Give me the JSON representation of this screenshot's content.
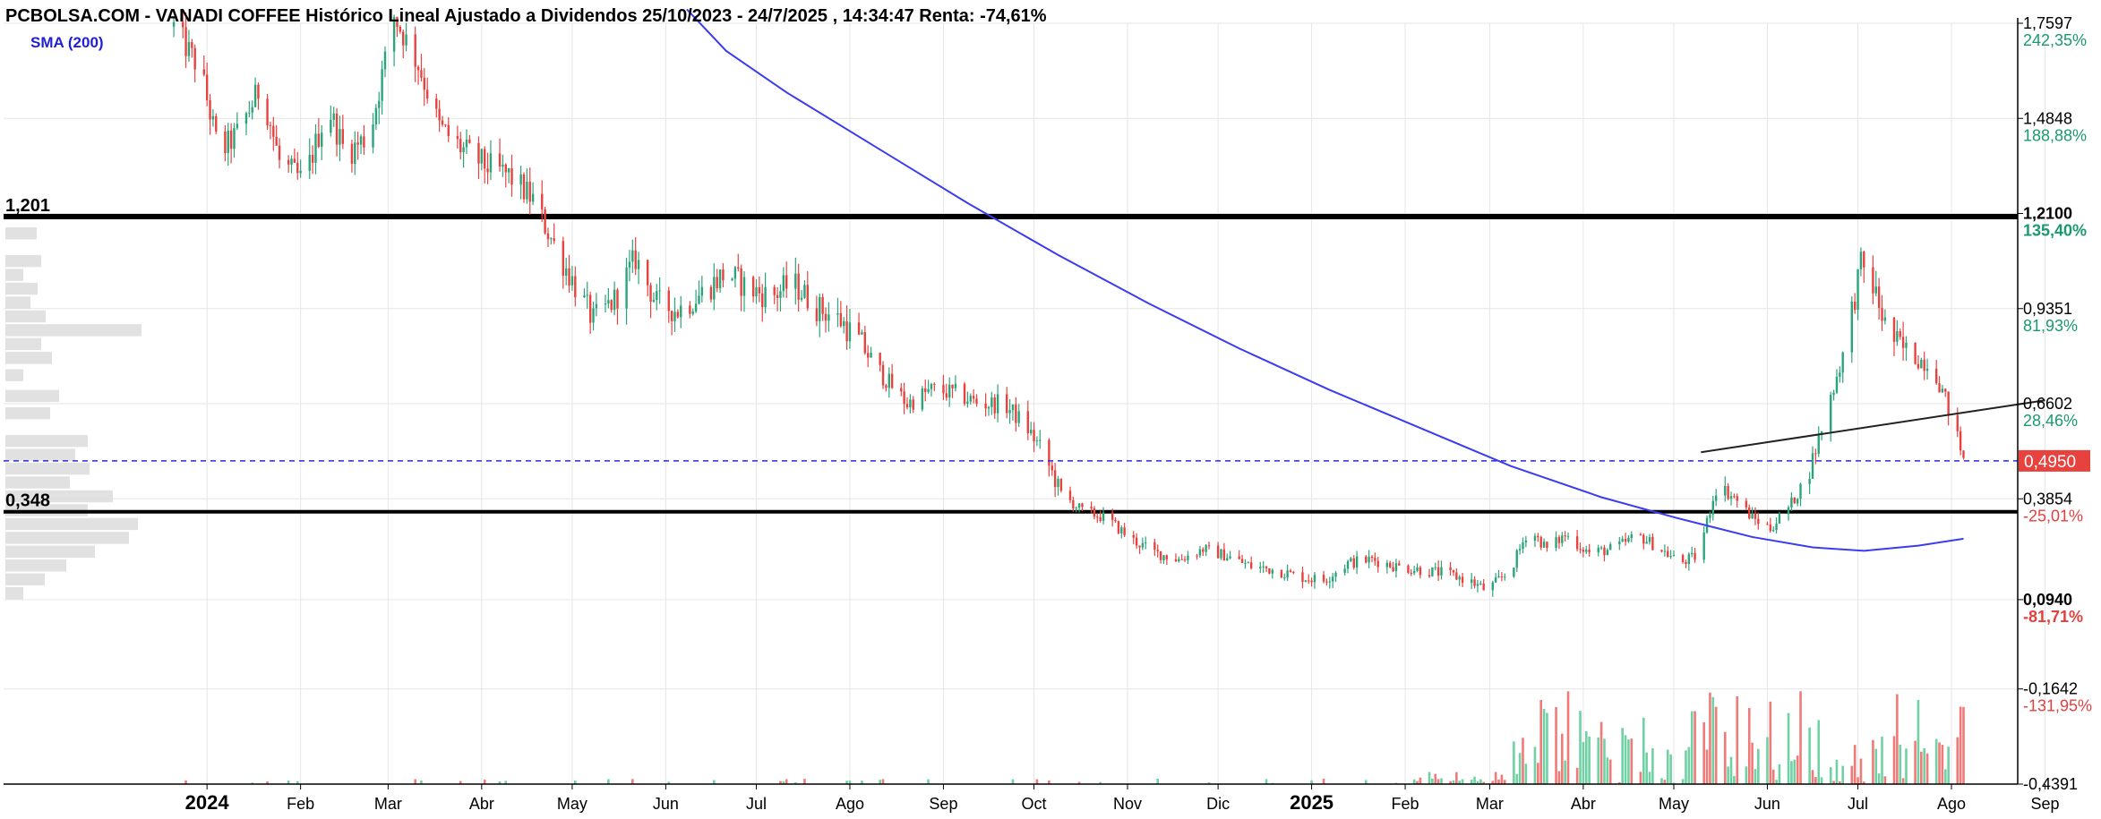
{
  "chart_data": {
    "type": "candlestick",
    "title": "PCBOLSA.COM - VANADI COFFEE Histórico Lineal Ajustado a Dividendos 25/10/2023 - 24/7/2025 , 14:34:47 Renta: -74,61%",
    "indicator_label": "SMA (200)",
    "y_scale": "linear",
    "ylim": [
      -0.4391,
      1.7597
    ],
    "y_ticks": [
      {
        "value": 1.7597,
        "label": "1,7597",
        "pct": "242,35%",
        "bold": false,
        "pct_color": "#1a9a6c"
      },
      {
        "value": 1.4848,
        "label": "1,4848",
        "pct": "188,88%",
        "bold": false,
        "pct_color": "#1a9a6c"
      },
      {
        "value": 1.21,
        "label": "1,2100",
        "pct": "135,40%",
        "bold": true,
        "pct_color": "#1a9a6c"
      },
      {
        "value": 0.9351,
        "label": "0,9351",
        "pct": "81,93%",
        "bold": false,
        "pct_color": "#1a9a6c"
      },
      {
        "value": 0.6602,
        "label": "0,6602",
        "pct": "28,46%",
        "bold": false,
        "pct_color": "#1a9a6c"
      },
      {
        "value": 0.3854,
        "label": "0,3854",
        "pct": "-25,01%",
        "bold": false,
        "pct_color": "#e0413f"
      },
      {
        "value": 0.094,
        "label": "0,0940",
        "pct": "-81,71%",
        "bold": true,
        "pct_color": "#e0413f"
      },
      {
        "value": -0.1642,
        "label": "-0,1642",
        "pct": "-131,95%",
        "bold": false,
        "pct_color": "#e0413f"
      },
      {
        "value": -0.4391,
        "label": "-0,4391",
        "pct": "",
        "bold": false,
        "pct_color": "#e0413f"
      }
    ],
    "last_price": {
      "value": 0.495,
      "label": "0,4950"
    },
    "support_resistance": [
      {
        "value": 1.201,
        "label": "1,201"
      },
      {
        "value": 0.348,
        "label": "0,348"
      }
    ],
    "x_labels": [
      {
        "label": "2024",
        "bold": true,
        "day": 68
      },
      {
        "label": "Feb",
        "bold": false,
        "day": 99
      },
      {
        "label": "Mar",
        "bold": false,
        "day": 128
      },
      {
        "label": "Abr",
        "bold": false,
        "day": 159
      },
      {
        "label": "May",
        "bold": false,
        "day": 189
      },
      {
        "label": "Jun",
        "bold": false,
        "day": 220
      },
      {
        "label": "Jul",
        "bold": false,
        "day": 250
      },
      {
        "label": "Ago",
        "bold": false,
        "day": 281
      },
      {
        "label": "Sep",
        "bold": false,
        "day": 312
      },
      {
        "label": "Oct",
        "bold": false,
        "day": 342
      },
      {
        "label": "Nov",
        "bold": false,
        "day": 373
      },
      {
        "label": "Dic",
        "bold": false,
        "day": 403
      },
      {
        "label": "2025",
        "bold": true,
        "day": 434
      },
      {
        "label": "Feb",
        "bold": false,
        "day": 465
      },
      {
        "label": "Mar",
        "bold": false,
        "day": 493
      },
      {
        "label": "Abr",
        "bold": false,
        "day": 524
      },
      {
        "label": "May",
        "bold": false,
        "day": 554
      },
      {
        "label": "Jun",
        "bold": false,
        "day": 585
      },
      {
        "label": "Jul",
        "bold": false,
        "day": 615
      },
      {
        "label": "Ago",
        "bold": false,
        "day": 646
      },
      {
        "label": "Sep",
        "bold": false,
        "day": 677
      }
    ],
    "price_path": [
      [
        57,
        1.75
      ],
      [
        66,
        1.62
      ],
      [
        72,
        1.38
      ],
      [
        78,
        1.44
      ],
      [
        86,
        1.58
      ],
      [
        92,
        1.36
      ],
      [
        100,
        1.3
      ],
      [
        108,
        1.52
      ],
      [
        114,
        1.38
      ],
      [
        122,
        1.44
      ],
      [
        130,
        1.78
      ],
      [
        138,
        1.64
      ],
      [
        145,
        1.46
      ],
      [
        152,
        1.4
      ],
      [
        160,
        1.35
      ],
      [
        168,
        1.32
      ],
      [
        176,
        1.25
      ],
      [
        183,
        1.12
      ],
      [
        190,
        1.0
      ],
      [
        196,
        0.9
      ],
      [
        203,
        0.96
      ],
      [
        210,
        1.08
      ],
      [
        217,
        0.95
      ],
      [
        224,
        0.93
      ],
      [
        232,
        0.98
      ],
      [
        240,
        1.04
      ],
      [
        248,
        0.99
      ],
      [
        255,
        0.97
      ],
      [
        262,
        1.01
      ],
      [
        270,
        0.94
      ],
      [
        278,
        0.9
      ],
      [
        285,
        0.83
      ],
      [
        292,
        0.74
      ],
      [
        300,
        0.66
      ],
      [
        308,
        0.7
      ],
      [
        316,
        0.69
      ],
      [
        324,
        0.66
      ],
      [
        332,
        0.66
      ],
      [
        339,
        0.6
      ],
      [
        345,
        0.52
      ],
      [
        351,
        0.4
      ],
      [
        358,
        0.35
      ],
      [
        366,
        0.33
      ],
      [
        374,
        0.27
      ],
      [
        382,
        0.23
      ],
      [
        390,
        0.21
      ],
      [
        398,
        0.24
      ],
      [
        406,
        0.22
      ],
      [
        414,
        0.19
      ],
      [
        422,
        0.18
      ],
      [
        430,
        0.16
      ],
      [
        438,
        0.15
      ],
      [
        446,
        0.2
      ],
      [
        454,
        0.21
      ],
      [
        462,
        0.19
      ],
      [
        470,
        0.18
      ],
      [
        478,
        0.17
      ],
      [
        486,
        0.15
      ],
      [
        492,
        0.12
      ],
      [
        500,
        0.18
      ],
      [
        506,
        0.3
      ],
      [
        512,
        0.24
      ],
      [
        518,
        0.28
      ],
      [
        526,
        0.23
      ],
      [
        534,
        0.24
      ],
      [
        542,
        0.28
      ],
      [
        548,
        0.25
      ],
      [
        556,
        0.2
      ],
      [
        562,
        0.22
      ],
      [
        568,
        0.42
      ],
      [
        574,
        0.39
      ],
      [
        580,
        0.33
      ],
      [
        586,
        0.3
      ],
      [
        592,
        0.36
      ],
      [
        598,
        0.44
      ],
      [
        604,
        0.62
      ],
      [
        610,
        0.8
      ],
      [
        616,
        1.06
      ],
      [
        620,
        1.0
      ],
      [
        625,
        0.86
      ],
      [
        632,
        0.8
      ],
      [
        640,
        0.77
      ],
      [
        646,
        0.62
      ],
      [
        650,
        0.5
      ]
    ],
    "sma_200": [
      [
        227,
        1.8
      ],
      [
        240,
        1.68
      ],
      [
        260,
        1.56
      ],
      [
        290,
        1.4
      ],
      [
        320,
        1.24
      ],
      [
        350,
        1.09
      ],
      [
        380,
        0.95
      ],
      [
        410,
        0.82
      ],
      [
        440,
        0.7
      ],
      [
        470,
        0.59
      ],
      [
        500,
        0.48
      ],
      [
        530,
        0.39
      ],
      [
        555,
        0.33
      ],
      [
        580,
        0.275
      ],
      [
        600,
        0.245
      ],
      [
        617,
        0.235
      ],
      [
        635,
        0.25
      ],
      [
        650,
        0.27
      ]
    ],
    "trendline": [
      [
        563,
        0.52
      ],
      [
        677,
        0.67
      ]
    ],
    "volume_profile_levels": [
      [
        1.15,
        35
      ],
      [
        1.07,
        40
      ],
      [
        1.03,
        20
      ],
      [
        0.99,
        36
      ],
      [
        0.95,
        28
      ],
      [
        0.91,
        45
      ],
      [
        0.87,
        152
      ],
      [
        0.83,
        40
      ],
      [
        0.79,
        52
      ],
      [
        0.74,
        20
      ],
      [
        0.68,
        60
      ],
      [
        0.63,
        50
      ],
      [
        0.55,
        92
      ],
      [
        0.51,
        78
      ],
      [
        0.47,
        94
      ],
      [
        0.43,
        72
      ],
      [
        0.39,
        120
      ],
      [
        0.35,
        92
      ],
      [
        0.31,
        148
      ],
      [
        0.27,
        138
      ],
      [
        0.23,
        100
      ],
      [
        0.19,
        68
      ],
      [
        0.15,
        44
      ],
      [
        0.11,
        20
      ]
    ],
    "volume_max_days": [
      520,
      579,
      605
    ],
    "grid": true,
    "legend_position": "top-left"
  }
}
